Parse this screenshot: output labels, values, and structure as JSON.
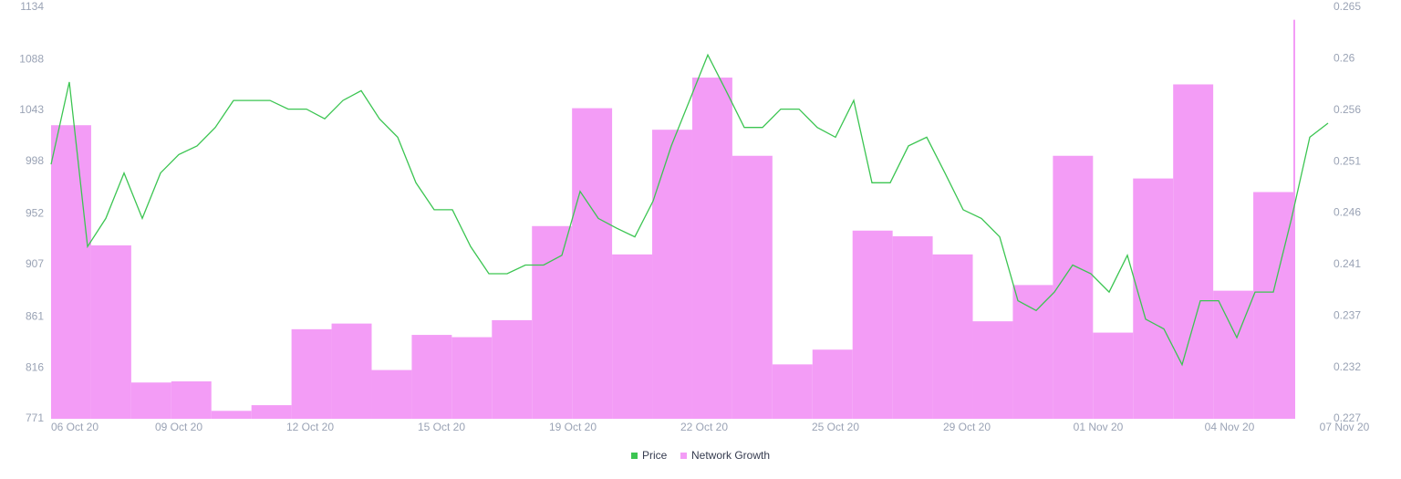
{
  "chart_data": {
    "type": "combo",
    "x_labels": [
      "06 Oct 20",
      "09 Oct 20",
      "12 Oct 20",
      "15 Oct 20",
      "19 Oct 20",
      "22 Oct 20",
      "25 Oct 20",
      "29 Oct 20",
      "01 Nov 20",
      "04 Nov 20",
      "07 Nov 20"
    ],
    "ylim": [
      771,
      1134
    ],
    "yticks": [
      771,
      816,
      861,
      907,
      952,
      998,
      1043,
      1088,
      1134
    ],
    "y2lim": [
      0.227,
      0.265
    ],
    "y2ticks": [
      0.227,
      {
        "value": 0.23175,
        "label": "0.232"
      },
      {
        "value": 0.2365,
        "label": "0.237"
      },
      {
        "value": 0.24125,
        "label": "0.241"
      },
      0.246,
      {
        "value": 0.25075,
        "label": "0.251"
      },
      {
        "value": 0.2555,
        "label": "0.256"
      },
      {
        "value": 0.26025,
        "label": "0.26"
      },
      0.265
    ],
    "legend": "bottom",
    "series": [
      {
        "name": "Price",
        "type": "line",
        "axis": "y2",
        "color": "#3cc552",
        "values": [
          0.2505,
          0.2581,
          0.2429,
          0.2455,
          0.2497,
          0.2455,
          0.2497,
          0.2514,
          0.2522,
          0.2539,
          0.2564,
          0.2564,
          0.2564,
          0.2556,
          0.2556,
          0.2547,
          0.2564,
          0.2573,
          0.2547,
          0.253,
          0.2488,
          0.2463,
          0.2463,
          0.2429,
          0.2404,
          0.2404,
          0.2412,
          0.2412,
          0.2421,
          0.248,
          0.2455,
          0.2446,
          0.2438,
          0.2471,
          0.2522,
          0.2564,
          0.2606,
          0.2573,
          0.2539,
          0.2539,
          0.2556,
          0.2556,
          0.2539,
          0.253,
          0.2564,
          0.2488,
          0.2488,
          0.2522,
          0.253,
          0.2497,
          0.2463,
          0.2455,
          0.2438,
          0.2379,
          0.237,
          0.2387,
          0.2412,
          0.2404,
          0.2387,
          0.2421,
          0.2362,
          0.2353,
          0.232,
          0.2379,
          0.2379,
          0.2345,
          0.2387,
          0.2387,
          0.2455,
          0.253,
          0.2543
        ]
      },
      {
        "name": "Network Growth",
        "type": "bar",
        "axis": "y",
        "color": "#f39cf6",
        "values": [
          1030,
          924,
          803,
          804,
          778,
          783,
          850,
          855,
          814,
          845,
          843,
          858,
          941,
          1045,
          916,
          1026,
          1072,
          1003,
          819,
          832,
          937,
          932,
          916,
          857,
          889,
          1003,
          847,
          983,
          1066,
          884,
          971,
          1123
        ]
      }
    ]
  }
}
